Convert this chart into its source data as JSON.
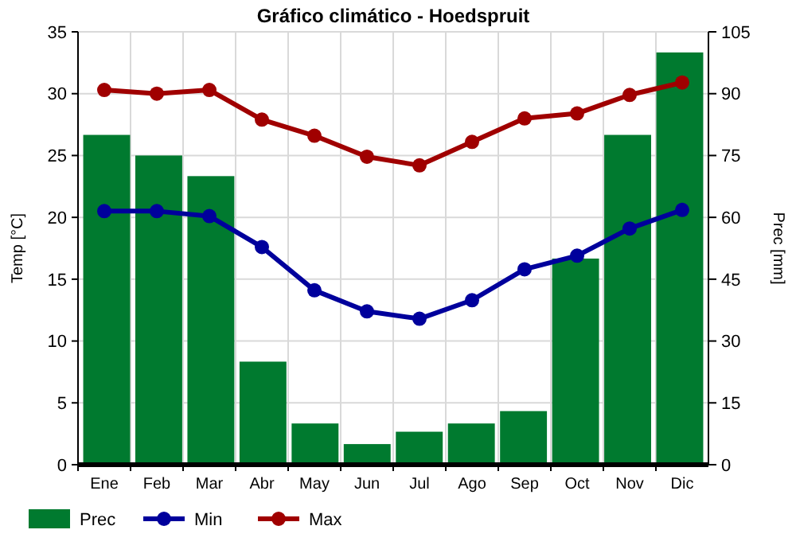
{
  "chart_data": {
    "type": "bar",
    "title": "Gráfico climático - Hoedspruit",
    "ylabel": "Temp [°C]",
    "y2label": "Prec [mm]",
    "categories": [
      "Ene",
      "Feb",
      "Mar",
      "Abr",
      "May",
      "Jun",
      "Jul",
      "Ago",
      "Sep",
      "Oct",
      "Nov",
      "Dic"
    ],
    "series": [
      {
        "name": "Prec",
        "axis": "y2",
        "color": "#007a2f",
        "values": [
          80,
          75,
          70,
          25,
          10,
          5,
          8,
          10,
          13,
          50,
          80,
          100
        ]
      },
      {
        "name": "Min",
        "type": "line",
        "color": "#00009c",
        "values": [
          20.5,
          20.5,
          20.1,
          17.6,
          14.1,
          12.4,
          11.8,
          13.3,
          15.8,
          16.9,
          19.1,
          20.6
        ]
      },
      {
        "name": "Max",
        "type": "line",
        "color": "#a00000",
        "values": [
          30.3,
          30.0,
          30.3,
          27.9,
          26.6,
          24.9,
          24.2,
          26.1,
          28.0,
          28.4,
          29.9,
          30.9
        ]
      }
    ],
    "ylim": [
      0,
      35
    ],
    "yticks": [
      0,
      5,
      10,
      15,
      20,
      25,
      30,
      35
    ],
    "y2lim": [
      0,
      105
    ],
    "y2ticks": [
      0,
      15,
      30,
      45,
      60,
      75,
      90,
      105
    ],
    "grid": true,
    "legend": "bottom",
    "marker": "circle"
  }
}
